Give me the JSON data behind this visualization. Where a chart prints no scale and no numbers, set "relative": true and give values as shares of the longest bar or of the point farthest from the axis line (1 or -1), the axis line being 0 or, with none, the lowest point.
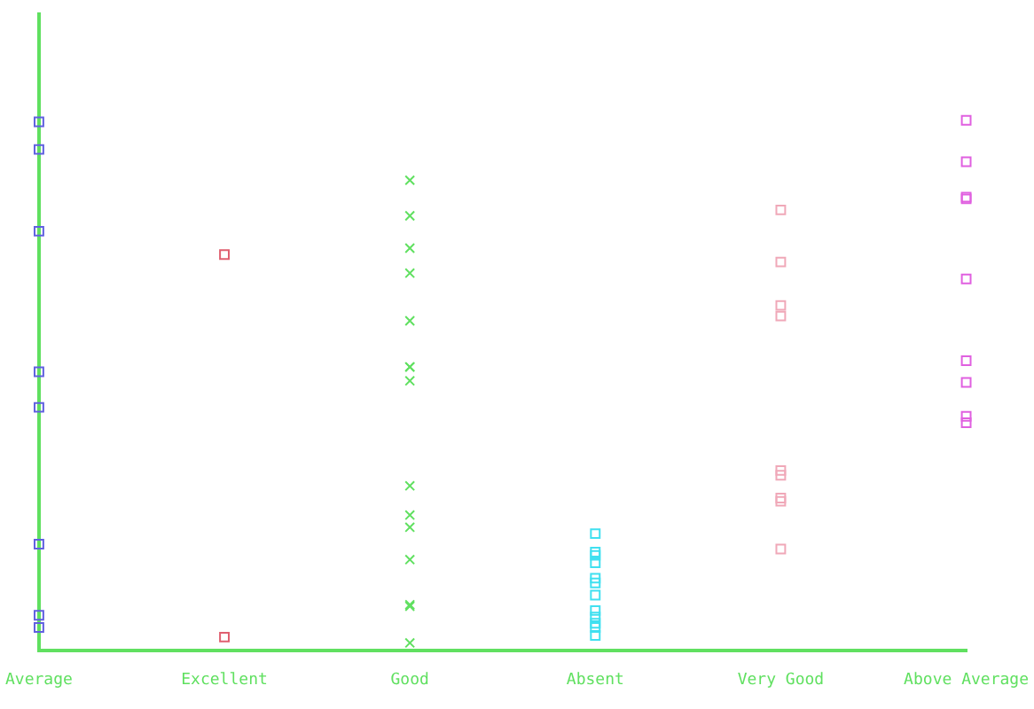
{
  "chart_data": {
    "type": "scatter",
    "relative": true,
    "categories": [
      "Average",
      "Excellent",
      "Good",
      "Absent",
      "Very Good",
      "Above Average"
    ],
    "tick_labels": "x",
    "grid": false,
    "legend": false,
    "marker": "square",
    "series": [
      {
        "color": "#6060e0",
        "x": [
          "Average",
          "Average",
          "Average",
          "Average",
          "Average",
          "Average",
          "Average",
          "Average"
        ],
        "values": [
          0.997,
          0.945,
          0.791,
          0.526,
          0.459,
          0.201,
          0.067,
          0.044
        ]
      },
      {
        "color": "#e06070",
        "x": [
          "Excellent",
          "Excellent"
        ],
        "values": [
          0.747,
          0.026
        ]
      },
      {
        "color": "#60e060",
        "marker": "cross",
        "x": [
          "Good",
          "Good",
          "Good",
          "Good",
          "Good",
          "Good",
          "Good",
          "Good",
          "Good",
          "Good",
          "Good",
          "Good",
          "Good",
          "Good",
          "Good"
        ],
        "values": [
          0.887,
          0.82,
          0.759,
          0.712,
          0.622,
          0.535,
          0.535,
          0.509,
          0.311,
          0.256,
          0.233,
          0.172,
          0.084,
          0.087,
          0.015
        ]
      },
      {
        "color": "#40e0f0",
        "x": [
          "Absent",
          "Absent",
          "Absent",
          "Absent",
          "Absent",
          "Absent",
          "Absent",
          "Absent",
          "Absent",
          "Absent",
          "Absent",
          "Absent"
        ],
        "values": [
          0.221,
          0.186,
          0.18,
          0.166,
          0.137,
          0.128,
          0.105,
          0.076,
          0.064,
          0.052,
          0.044,
          0.029
        ]
      },
      {
        "color": "#f0a8b8",
        "x": [
          "Very Good",
          "Very Good",
          "Very Good",
          "Very Good",
          "Very Good",
          "Very Good",
          "Very Good",
          "Very Good",
          "Very Good"
        ],
        "values": [
          0.831,
          0.733,
          0.651,
          0.631,
          0.34,
          0.331,
          0.282,
          0.288,
          0.192
        ]
      },
      {
        "color": "#e060e0",
        "x": [
          "Above Average",
          "Above Average",
          "Above Average",
          "Above Average",
          "Above Average",
          "Above Average",
          "Above Average",
          "Above Average",
          "Above Average"
        ],
        "values": [
          1,
          0.922,
          0.852,
          0.855,
          0.701,
          0.547,
          0.506,
          0.442,
          0.43
        ]
      }
    ]
  }
}
